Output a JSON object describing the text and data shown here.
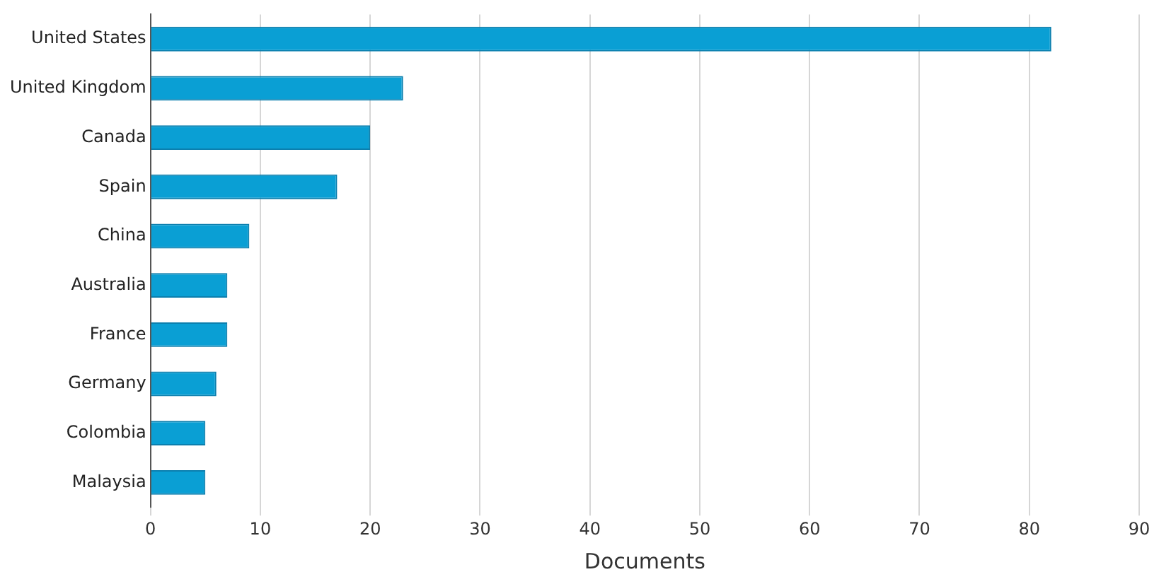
{
  "chart_data": {
    "type": "bar",
    "orientation": "horizontal",
    "xlabel": "Documents",
    "categories": [
      "United States",
      "United Kingdom",
      "Canada",
      "Spain",
      "China",
      "Australia",
      "France",
      "Germany",
      "Colombia",
      "Malaysia"
    ],
    "values": [
      82,
      23,
      20,
      17,
      9,
      7,
      7,
      6,
      5,
      5
    ],
    "color": "#0a9fd4",
    "xlim": [
      0,
      90
    ],
    "xticks": [
      0,
      10,
      20,
      30,
      40,
      50,
      60,
      70,
      80,
      90
    ],
    "grid": "x",
    "legend": false
  }
}
